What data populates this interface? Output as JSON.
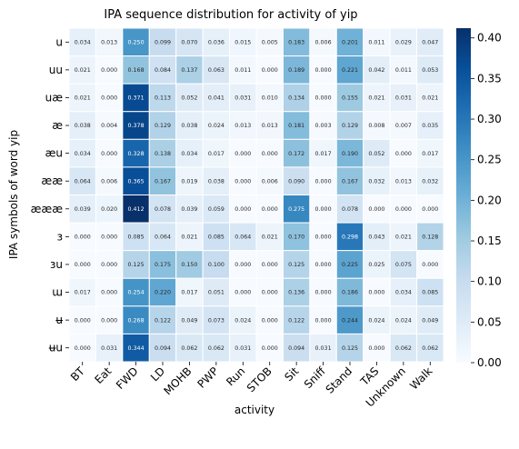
{
  "chart_data": {
    "type": "heatmap",
    "title": "IPA sequence distribution for activity of yip",
    "xlabel": "activity",
    "ylabel": "IPA symbols of word yip",
    "columns": [
      "BT",
      "Eat",
      "FWD",
      "LD",
      "MOHB",
      "PWP",
      "Run",
      "STOB",
      "Sit",
      "Sniff",
      "Stand",
      "TAS",
      "Unknown",
      "Walk"
    ],
    "rows": [
      "u",
      "uu",
      "uæ",
      "æ",
      "æu",
      "ææ",
      "æææ",
      "ɜ",
      "ɜu",
      "ɯ",
      "ʉ",
      "ʉu"
    ],
    "values": [
      [
        0.034,
        0.013,
        0.25,
        0.099,
        0.07,
        0.036,
        0.015,
        0.005,
        0.183,
        0.006,
        0.201,
        0.011,
        0.029,
        0.047
      ],
      [
        0.021,
        0.0,
        0.168,
        0.084,
        0.137,
        0.063,
        0.011,
        0.0,
        0.189,
        0.0,
        0.221,
        0.042,
        0.011,
        0.053
      ],
      [
        0.021,
        0.0,
        0.371,
        0.113,
        0.052,
        0.041,
        0.031,
        0.01,
        0.134,
        0.0,
        0.155,
        0.021,
        0.031,
        0.021
      ],
      [
        0.038,
        0.004,
        0.378,
        0.129,
        0.038,
        0.024,
        0.013,
        0.013,
        0.181,
        0.003,
        0.129,
        0.008,
        0.007,
        0.035
      ],
      [
        0.034,
        0.0,
        0.328,
        0.138,
        0.034,
        0.017,
        0.0,
        0.0,
        0.172,
        0.017,
        0.19,
        0.052,
        0.0,
        0.017
      ],
      [
        0.064,
        0.006,
        0.365,
        0.167,
        0.019,
        0.038,
        0.0,
        0.006,
        0.09,
        0.0,
        0.167,
        0.032,
        0.013,
        0.032
      ],
      [
        0.039,
        0.02,
        0.412,
        0.078,
        0.039,
        0.059,
        0.0,
        0.0,
        0.275,
        0.0,
        0.078,
        0.0,
        0.0,
        0.0
      ],
      [
        0.0,
        0.0,
        0.085,
        0.064,
        0.021,
        0.085,
        0.064,
        0.021,
        0.17,
        0.0,
        0.298,
        0.043,
        0.021,
        0.128
      ],
      [
        0.0,
        0.0,
        0.125,
        0.175,
        0.15,
        0.1,
        0.0,
        0.0,
        0.125,
        0.0,
        0.225,
        0.025,
        0.075,
        0.0
      ],
      [
        0.017,
        0.0,
        0.254,
        0.22,
        0.017,
        0.051,
        0.0,
        0.0,
        0.136,
        0.0,
        0.186,
        0.0,
        0.034,
        0.085
      ],
      [
        0.0,
        0.0,
        0.268,
        0.122,
        0.049,
        0.073,
        0.024,
        0.0,
        0.122,
        0.0,
        0.244,
        0.024,
        0.024,
        0.049
      ],
      [
        0.0,
        0.031,
        0.344,
        0.094,
        0.062,
        0.062,
        0.031,
        0.0,
        0.094,
        0.031,
        0.125,
        0.0,
        0.062,
        0.062
      ]
    ],
    "vmin": 0.0,
    "vmax": 0.412,
    "colormap": "Blues",
    "colorbar_ticks": [
      "0.00",
      "0.05",
      "0.10",
      "0.15",
      "0.20",
      "0.25",
      "0.30",
      "0.35",
      "0.40"
    ],
    "colorbar_tick_values": [
      0.0,
      0.05,
      0.1,
      0.15,
      0.2,
      0.25,
      0.3,
      0.35,
      0.4
    ],
    "grid": false,
    "cell_separator_color": "#ffffff"
  }
}
